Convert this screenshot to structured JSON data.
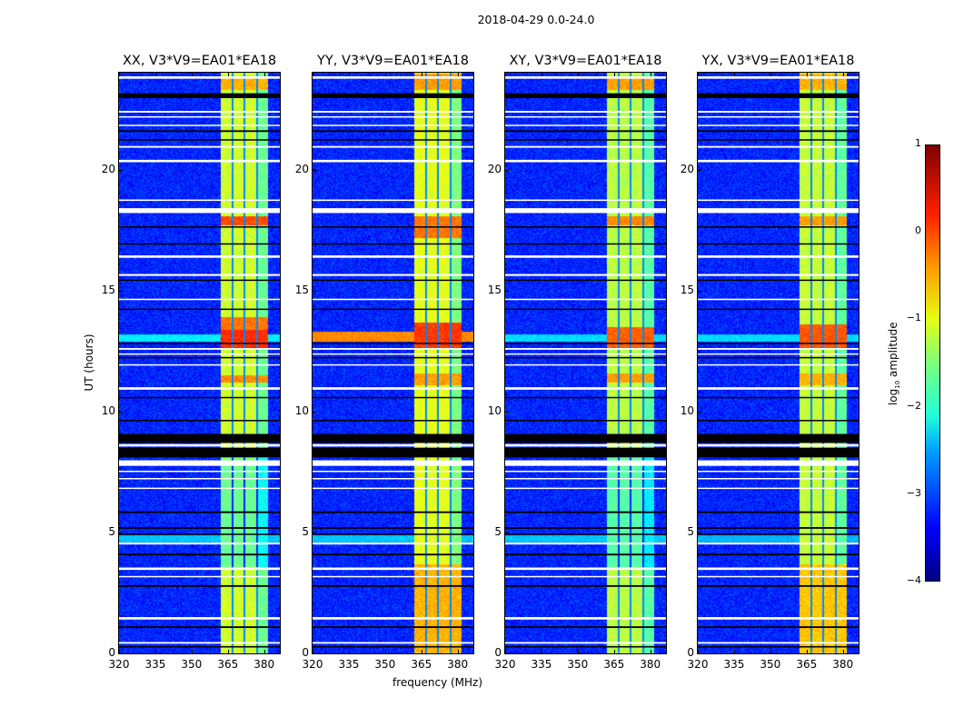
{
  "chart_data": {
    "type": "heatmap",
    "suptitle": "2018-04-29 0.0-24.0",
    "xlabel": "frequency (MHz)",
    "ylabel": "UT (hours)",
    "xlim": [
      320,
      386.5
    ],
    "ylim": [
      0,
      24
    ],
    "xticks": [
      "320",
      "335",
      "350",
      "365",
      "380"
    ],
    "xtick_values": [
      320,
      335,
      350,
      365,
      380
    ],
    "yticks": [
      "0",
      "5",
      "10",
      "15",
      "20"
    ],
    "ytick_values": [
      0,
      5,
      10,
      15,
      20
    ],
    "panels": [
      {
        "title": "XX, V3*V9=EA01*EA18",
        "band_level": -1.1,
        "bursts": [
          [
            11.2,
            11.5,
            -0.3
          ],
          [
            12.6,
            13.6,
            0.15
          ],
          [
            17.7,
            18.1,
            0.0
          ],
          [
            23.3,
            23.8,
            -0.5
          ],
          [
            13.4,
            13.9,
            -0.2
          ]
        ],
        "rfi_rows": [
          [
            4.6,
            4.9,
            -2.4
          ],
          [
            12.9,
            13.2,
            -2.2
          ]
        ]
      },
      {
        "title": "YY, V3*V9=EA01*EA18",
        "band_level": -1.0,
        "bursts": [
          [
            0,
            3.7,
            -0.5
          ],
          [
            11.1,
            11.6,
            -0.4
          ],
          [
            12.6,
            13.7,
            0.1
          ],
          [
            17.2,
            18.1,
            -0.2
          ],
          [
            23.3,
            24,
            -0.4
          ]
        ],
        "rfi_rows": [
          [
            4.6,
            4.9,
            -2.4
          ],
          [
            12.9,
            13.3,
            -0.3
          ]
        ]
      },
      {
        "title": "XY, V3*V9=EA01*EA18",
        "band_level": -1.2,
        "bursts": [
          [
            11.2,
            11.6,
            -0.4
          ],
          [
            12.6,
            13.5,
            -0.1
          ],
          [
            17.7,
            18.1,
            -0.3
          ],
          [
            23.3,
            23.8,
            -0.4
          ]
        ],
        "rfi_rows": [
          [
            4.6,
            4.9,
            -2.4
          ],
          [
            12.9,
            13.2,
            -2.3
          ]
        ]
      },
      {
        "title": "YX, V3*V9=EA01*EA18",
        "band_level": -1.15,
        "bursts": [
          [
            0,
            3.7,
            -0.6
          ],
          [
            11.1,
            11.6,
            -0.5
          ],
          [
            12.6,
            13.6,
            -0.05
          ],
          [
            17.7,
            18.1,
            -0.4
          ],
          [
            23.3,
            24,
            -0.5
          ]
        ],
        "rfi_rows": [
          [
            4.6,
            4.9,
            -2.5
          ],
          [
            12.9,
            13.2,
            -2.3
          ]
        ]
      }
    ],
    "background_level": -3.2,
    "bright_band_mhz": [
      362,
      381.5
    ],
    "subband_gaps_mhz": [
      366.8,
      371.8,
      376.9
    ],
    "flagged_white_hours": [
      [
        23.75,
        23.85
      ],
      [
        22.35,
        22.42
      ],
      [
        22.15,
        22.2
      ],
      [
        21.8,
        21.85
      ],
      [
        20.9,
        20.97
      ],
      [
        20.3,
        20.4
      ],
      [
        18.7,
        18.76
      ],
      [
        18.2,
        18.4
      ],
      [
        16.35,
        16.45
      ],
      [
        15.6,
        15.68
      ],
      [
        14.6,
        14.66
      ],
      [
        12.55,
        12.62
      ],
      [
        12.35,
        12.4
      ],
      [
        11.9,
        11.95
      ],
      [
        10.9,
        11.0
      ],
      [
        8.55,
        8.65
      ],
      [
        7.75,
        7.98
      ],
      [
        7.5,
        7.55
      ],
      [
        7.2,
        7.25
      ],
      [
        6.8,
        6.85
      ],
      [
        4.5,
        4.58
      ],
      [
        3.45,
        3.55
      ],
      [
        3.15,
        3.2
      ],
      [
        1.4,
        1.5
      ],
      [
        0.4,
        0.47
      ]
    ],
    "flagged_black_hours": [
      [
        22.95,
        23.15
      ],
      [
        21.55,
        21.62
      ],
      [
        21.2,
        21.25
      ],
      [
        17.6,
        17.65
      ],
      [
        16.9,
        16.95
      ],
      [
        15.4,
        15.45
      ],
      [
        14.2,
        14.25
      ],
      [
        12.8,
        12.84
      ],
      [
        12.2,
        12.25
      ],
      [
        10.55,
        10.6
      ],
      [
        9.6,
        9.65
      ],
      [
        8.1,
        8.5
      ],
      [
        8.7,
        9.07
      ],
      [
        5.8,
        5.87
      ],
      [
        5.15,
        5.22
      ],
      [
        4.9,
        4.95
      ],
      [
        4.05,
        4.12
      ],
      [
        2.75,
        2.82
      ],
      [
        1.05,
        1.12
      ],
      [
        0.25,
        0.3
      ]
    ],
    "colorbar": {
      "label_main": "log",
      "label_sub": "10",
      "label_rest": " amplitude",
      "range": [
        -4,
        1
      ],
      "ticks": [
        "1",
        "0",
        "−1",
        "−2",
        "−3",
        "−4"
      ],
      "tick_values": [
        1,
        0,
        -1,
        -2,
        -3,
        -4
      ],
      "colormap": "jet"
    }
  }
}
